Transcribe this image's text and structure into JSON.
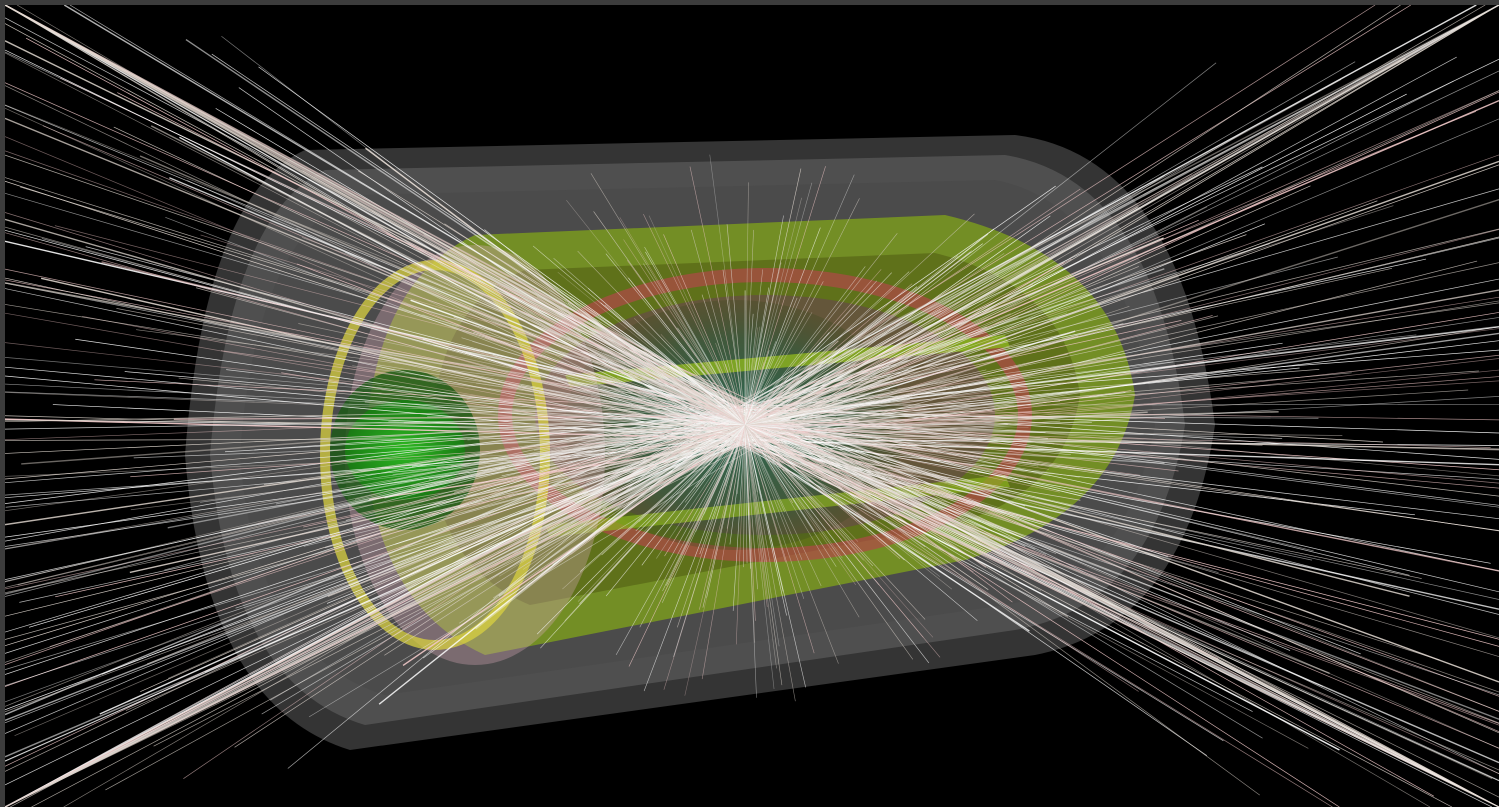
{
  "viewer": {
    "background": "#000000",
    "frame_color": "#3c3c3c"
  },
  "scene": {
    "subject": "particle-collision-event-display",
    "detector_layer_colors": {
      "outer_shell": "#4a4a4a",
      "mid_shell": "#606060",
      "calorimeter": "#7a9a1e",
      "inner_ring": "#b04848",
      "tracker_core": "#1f6e5c",
      "endcap_green": "#27a020",
      "endcap_yellow": "#d8d040",
      "endcap_pink": "#d8a8b8"
    },
    "track_colors": [
      "#f2f2f2",
      "#e6dcd4",
      "#f0c8c8",
      "#ffffff",
      "#d8d0c8"
    ]
  }
}
